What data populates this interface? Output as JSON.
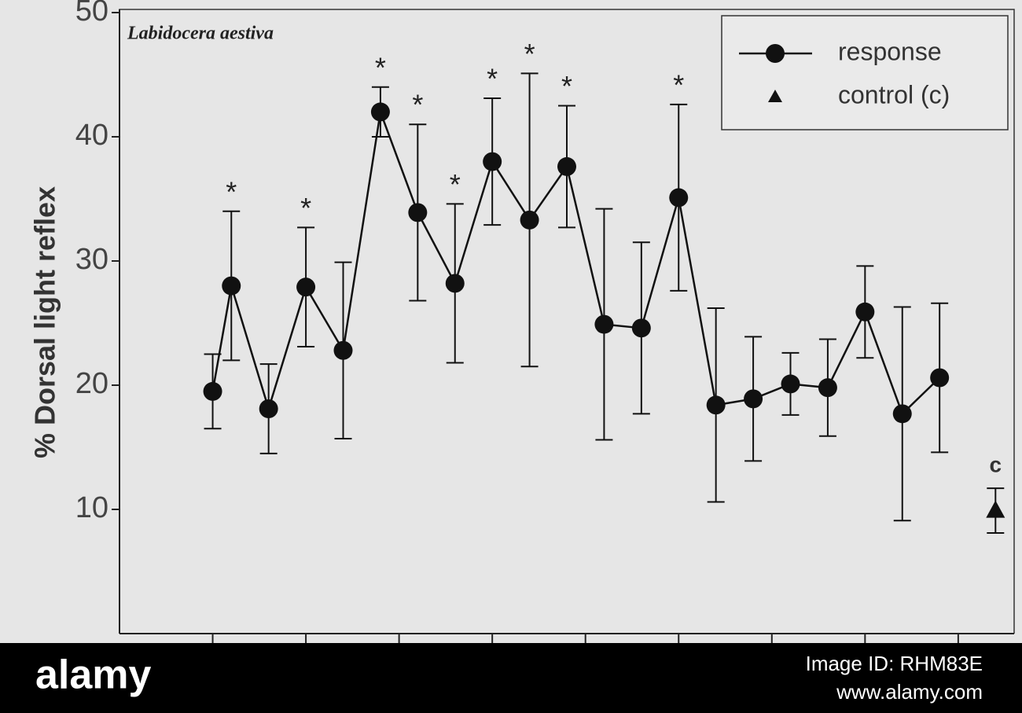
{
  "chart_data": {
    "type": "line",
    "title": "Labidocera aestiva",
    "y_label": "% Dorsal light reflex",
    "xlim": [
      0,
      9.6
    ],
    "xticks": [
      1,
      2,
      3,
      4,
      5,
      6,
      7,
      8,
      9
    ],
    "ylim": [
      0,
      50
    ],
    "yticks": [
      10,
      20,
      30,
      40,
      50
    ],
    "legend": "upper right",
    "series": [
      {
        "name": "response",
        "color": "#111111",
        "marker": "circle",
        "x": [
          1.0,
          1.2,
          1.6,
          2.0,
          2.4,
          2.8,
          3.2,
          3.6,
          4.0,
          4.4,
          4.8,
          5.2,
          5.6,
          6.0,
          6.4,
          6.8,
          7.2,
          7.6,
          8.0,
          8.4,
          8.8
        ],
        "values": [
          19.5,
          28,
          18.1,
          27.9,
          22.8,
          42,
          33.9,
          28.2,
          38,
          33.3,
          37.6,
          24.9,
          24.6,
          35.1,
          18.4,
          18.9,
          20.1,
          19.8,
          25.9,
          17.7,
          20.6
        ],
        "errors": [
          3,
          6,
          3.6,
          4.8,
          7.1,
          2,
          7.1,
          6.4,
          5.1,
          11.8,
          4.9,
          9.3,
          6.9,
          7.5,
          7.8,
          5,
          2.5,
          3.9,
          3.7,
          8.6,
          6
        ],
        "point_labels": [
          null,
          "*",
          null,
          "*",
          null,
          "*",
          "*",
          "*",
          "*",
          "*",
          "*",
          null,
          null,
          "*",
          null,
          null,
          null,
          null,
          null,
          null,
          null
        ]
      },
      {
        "name": "control (c)",
        "color": "#111111",
        "marker": "triangle",
        "x": [
          9.4
        ],
        "values": [
          9.9
        ],
        "errors": [
          1.8
        ],
        "point_labels": [
          "c"
        ]
      }
    ]
  },
  "watermark": {
    "brand": "alamy",
    "image_id": "Image ID: RHM83E",
    "site": "www.alamy.com"
  }
}
